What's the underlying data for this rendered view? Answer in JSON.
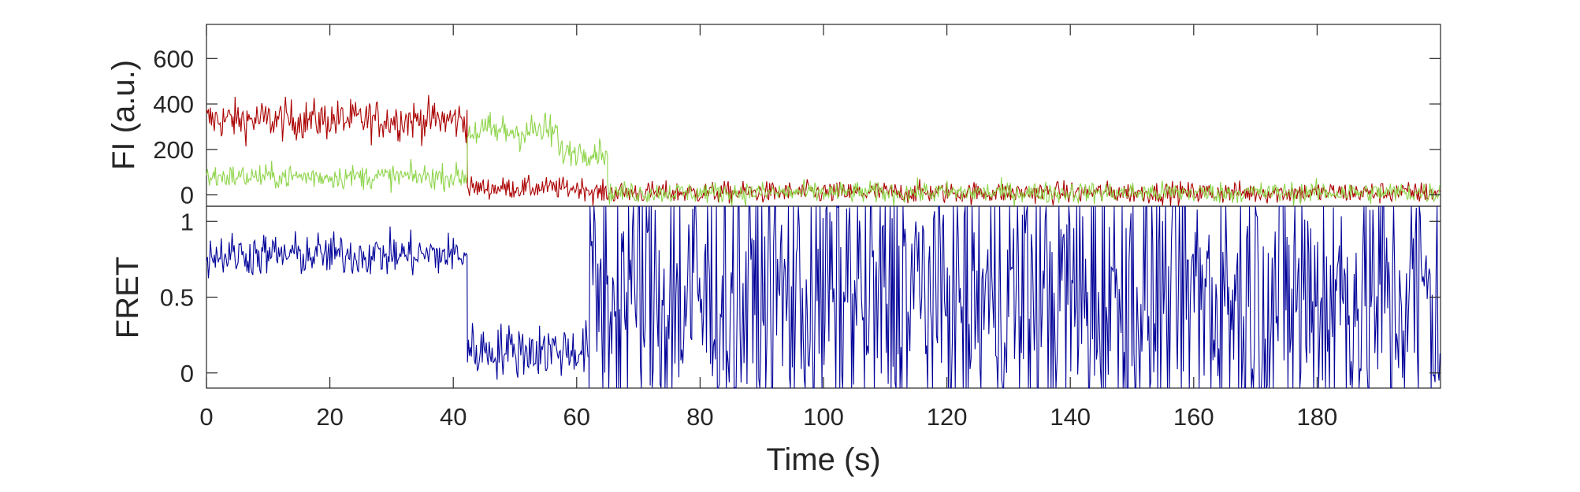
{
  "chart_data": [
    {
      "type": "line",
      "panel": "top",
      "ylabel": "FI (a.u.)",
      "xlim": [
        0,
        200
      ],
      "ylim": [
        -50,
        750
      ],
      "yticks": [
        0,
        200,
        400,
        600
      ],
      "ytick_labels": [
        "0",
        "200",
        "400",
        "600"
      ],
      "grid": false,
      "legend": "none",
      "series": [
        {
          "color": "#ab0000",
          "segments": [
            {
              "x_start": 0,
              "x_end": 42.3,
              "mean": 330,
              "noise": 75
            },
            {
              "x_start": 42.3,
              "x_end": 62,
              "mean": 30,
              "noise": 40
            },
            {
              "x_start": 62,
              "x_end": 200,
              "mean": 10,
              "noise": 40
            }
          ]
        },
        {
          "color": "#8ed44a",
          "segments": [
            {
              "x_start": 0,
              "x_end": 42.3,
              "mean": 80,
              "noise": 45
            },
            {
              "x_start": 42.3,
              "x_end": 57,
              "mean": 280,
              "noise": 70
            },
            {
              "x_start": 57,
              "x_end": 65,
              "mean": 190,
              "noise": 50
            },
            {
              "x_start": 65,
              "x_end": 200,
              "mean": 10,
              "noise": 40
            }
          ]
        }
      ]
    },
    {
      "type": "line",
      "panel": "bottom",
      "ylabel": "FRET",
      "xlabel": "Time (s)",
      "xlim": [
        0,
        200
      ],
      "ylim": [
        -0.1,
        1.1
      ],
      "xticks": [
        0,
        20,
        40,
        60,
        80,
        100,
        120,
        140,
        160,
        180
      ],
      "xtick_labels": [
        "0",
        "20",
        "40",
        "60",
        "80",
        "100",
        "120",
        "140",
        "160",
        "180"
      ],
      "yticks": [
        0,
        0.5,
        1
      ],
      "ytick_labels": [
        "0",
        "0.5",
        "1"
      ],
      "grid": false,
      "legend": "none",
      "series": [
        {
          "color": "#000099",
          "segments": [
            {
              "x_start": 0,
              "x_end": 42.3,
              "mean": 0.78,
              "noise": 0.12
            },
            {
              "x_start": 42.3,
              "x_end": 62,
              "mean": 0.15,
              "noise": 0.15
            },
            {
              "x_start": 62,
              "x_end": 200,
              "mean": 0.5,
              "noise": 0.9
            }
          ]
        }
      ]
    }
  ]
}
